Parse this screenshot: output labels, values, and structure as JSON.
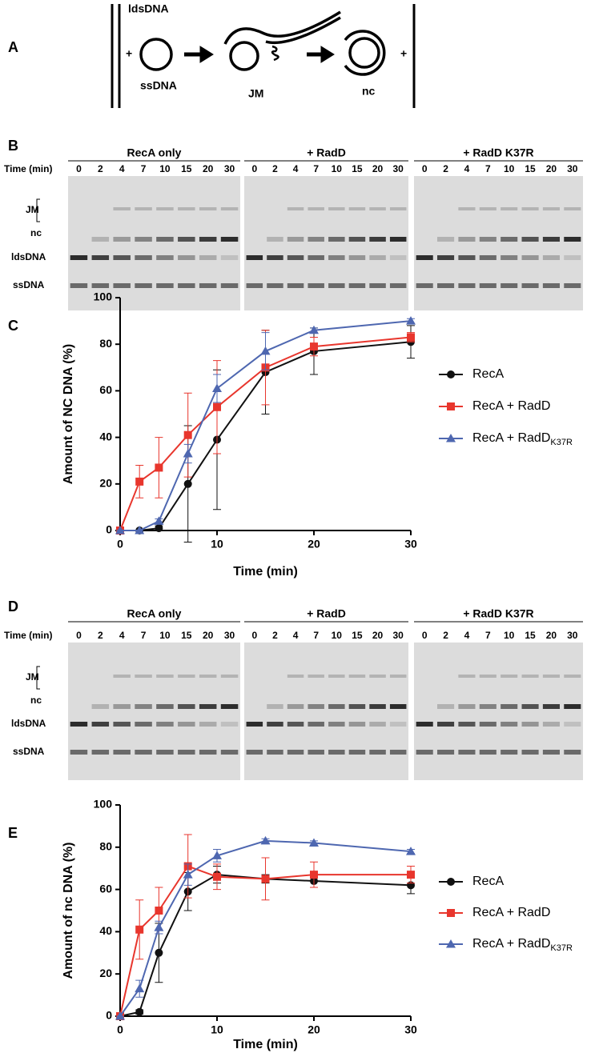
{
  "panel_a": {
    "label": "A",
    "ldsdna": "ldsDNA",
    "ssdna": "ssDNA",
    "jm": "JM",
    "nc": "nc",
    "plus": "+"
  },
  "gels": [
    {
      "label": "B",
      "groups": [
        "RecA only",
        "+ RadD",
        "+ RadD K37R"
      ],
      "time_label": "Time (min)",
      "times": [
        0,
        2,
        4,
        7,
        10,
        15,
        20,
        30
      ],
      "rows": [
        "JM",
        "nc",
        "ldsDNA",
        "ssDNA"
      ]
    },
    {
      "label": "D",
      "groups": [
        "RecA only",
        "+ RadD",
        "+ RadD K37R"
      ],
      "time_label": "Time (min)",
      "times": [
        0,
        2,
        4,
        7,
        10,
        15,
        20,
        30
      ],
      "rows": [
        "JM",
        "nc",
        "ldsDNA",
        "ssDNA"
      ]
    }
  ],
  "chart_data": [
    {
      "type": "line",
      "panel_label": "C",
      "xlabel": "Time (min)",
      "ylabel": "Amount of NC DNA (%)",
      "x": [
        0,
        2,
        4,
        7,
        10,
        15,
        20,
        30
      ],
      "xlim": [
        0,
        30
      ],
      "xticks": [
        0,
        10,
        20,
        30
      ],
      "ylim": [
        0,
        100
      ],
      "yticks": [
        0,
        20,
        40,
        60,
        80,
        100
      ],
      "series": [
        {
          "name": "RecA",
          "color": "#111111",
          "marker": "circle",
          "values": [
            0,
            0,
            1,
            20,
            39,
            68,
            77,
            81
          ],
          "errors": [
            0,
            0,
            1,
            25,
            30,
            18,
            10,
            7
          ]
        },
        {
          "name": "RecA + RadD",
          "color": "#e8362d",
          "marker": "square",
          "values": [
            0,
            21,
            27,
            41,
            53,
            70,
            79,
            83
          ],
          "errors": [
            0,
            7,
            13,
            18,
            20,
            16,
            4,
            2
          ]
        },
        {
          "name": "RecA + RadD",
          "subscript": "K37R",
          "color": "#4e67b0",
          "marker": "triangle",
          "values": [
            0,
            0,
            4,
            33,
            61,
            77,
            86,
            90
          ],
          "errors": [
            0,
            0,
            1,
            4,
            6,
            8,
            1,
            1
          ]
        }
      ]
    },
    {
      "type": "line",
      "panel_label": "E",
      "xlabel": "Time (min)",
      "ylabel": "Amount of nc DNA (%)",
      "x": [
        0,
        2,
        4,
        7,
        10,
        15,
        20,
        30
      ],
      "xlim": [
        0,
        30
      ],
      "xticks": [
        0,
        10,
        20,
        30
      ],
      "ylim": [
        0,
        100
      ],
      "yticks": [
        0,
        20,
        40,
        60,
        80,
        100
      ],
      "series": [
        {
          "name": "RecA",
          "color": "#111111",
          "marker": "circle",
          "values": [
            0,
            2,
            30,
            59,
            67,
            65,
            64,
            62
          ],
          "errors": [
            0,
            1,
            14,
            9,
            4,
            2,
            3,
            4
          ]
        },
        {
          "name": "RecA + RadD",
          "color": "#e8362d",
          "marker": "square",
          "values": [
            0,
            41,
            50,
            71,
            66,
            65,
            67,
            67
          ],
          "errors": [
            0,
            14,
            11,
            15,
            6,
            10,
            6,
            4
          ]
        },
        {
          "name": "RecA + RadD",
          "subscript": "K37R",
          "color": "#4e67b0",
          "marker": "triangle",
          "values": [
            0,
            13,
            42,
            67,
            76,
            83,
            82,
            78
          ],
          "errors": [
            0,
            4,
            3,
            5,
            3,
            1,
            1,
            1
          ]
        }
      ]
    }
  ]
}
